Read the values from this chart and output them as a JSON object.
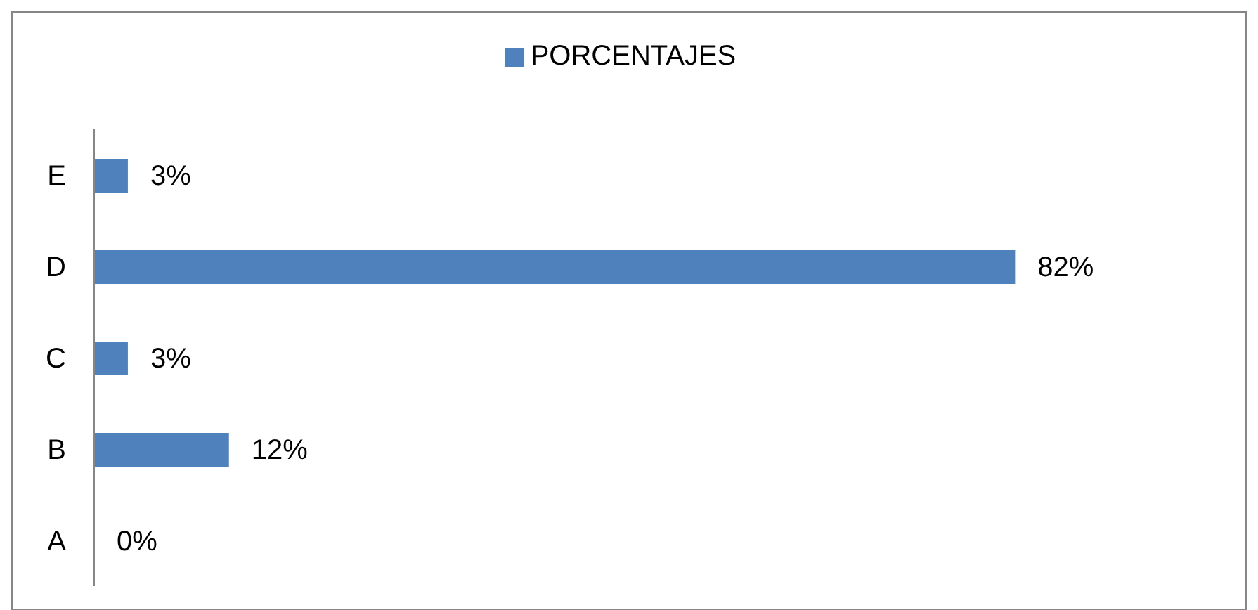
{
  "chart_data": {
    "type": "bar",
    "orientation": "horizontal",
    "categories": [
      "E",
      "D",
      "C",
      "B",
      "A"
    ],
    "series": [
      {
        "name": "PORCENTAJES",
        "color": "#4f81bd",
        "values": [
          3,
          82,
          3,
          12,
          0
        ],
        "value_labels": [
          "3%",
          "82%",
          "3%",
          "12%",
          "0%"
        ]
      }
    ],
    "tick_labels": "y",
    "legend": "top"
  }
}
